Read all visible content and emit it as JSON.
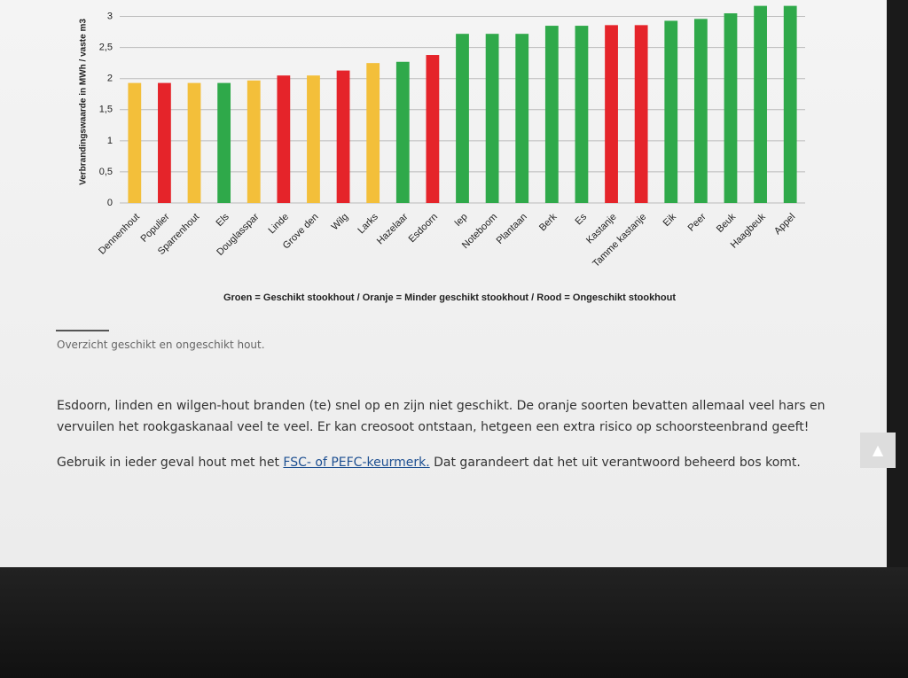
{
  "chart_data": {
    "type": "bar",
    "y_label": "Verbrandingswaarde in MWh / vaste m3",
    "legend_note": "Groen = Geschikt stookhout / Oranje = Minder geschikt stookhout / Rood = Ongeschikt stookhout",
    "categories": [
      "Dennenhout",
      "Populier",
      "Sparrenhout",
      "Els",
      "Douglasspar",
      "Linde",
      "Grove den",
      "Wilg",
      "Larks",
      "Hazelaar",
      "Esdoorn",
      "Iep",
      "Noteboom",
      "Plantaan",
      "Berk",
      "Es",
      "Kastanje",
      "Tamme kastanje",
      "Eik",
      "Peer",
      "Beuk",
      "Haagbeuk",
      "Appel"
    ],
    "values": [
      1.93,
      1.93,
      1.93,
      1.93,
      1.97,
      2.05,
      2.05,
      2.13,
      2.25,
      2.27,
      2.38,
      2.72,
      2.72,
      2.72,
      2.85,
      2.85,
      2.86,
      2.86,
      2.93,
      2.96,
      3.05,
      3.17,
      3.17
    ],
    "colors": [
      "#f3bf3a",
      "#e5242a",
      "#f3bf3a",
      "#2fa94a",
      "#f3bf3a",
      "#e5242a",
      "#f3bf3a",
      "#e5242a",
      "#f3bf3a",
      "#2fa94a",
      "#e5242a",
      "#2fa94a",
      "#2fa94a",
      "#2fa94a",
      "#2fa94a",
      "#2fa94a",
      "#e5242a",
      "#e5242a",
      "#2fa94a",
      "#2fa94a",
      "#2fa94a",
      "#2fa94a",
      "#2fa94a"
    ],
    "ylim": [
      0,
      3.25
    ],
    "yticks": [
      0,
      {
        "value": 0.5,
        "label": "0,5"
      },
      1,
      {
        "value": 1.5,
        "label": "1,5"
      },
      2,
      {
        "value": 2.5,
        "label": "2,5"
      },
      3
    ],
    "grid": true
  },
  "caption": "Overzicht geschikt en ongeschikt hout.",
  "paragraphs": [
    [
      "Esdoorn, linden en wilgen-hout branden (te) snel op en zijn niet geschikt. De oranje soorten bevatten allemaal veel hars en vervuilen het rookgaskanaal veel te veel. Er kan creosoot ontstaan, hetgeen een extra risico op schoorsteenbrand geeft!"
    ],
    [
      "Gebruik in ieder geval hout met het ",
      "FSC- of PEFC-keurmerk.",
      " Dat garandeert dat het uit verantwoord beheerd bos komt."
    ]
  ]
}
